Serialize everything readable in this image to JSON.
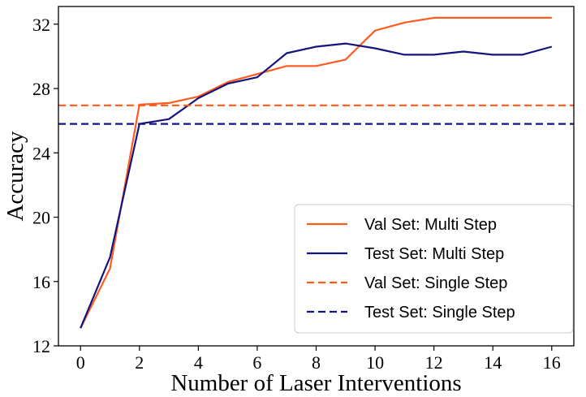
{
  "chart_data": {
    "type": "line",
    "title": "",
    "xlabel": "Number of Laser Interventions",
    "ylabel": "Accuracy",
    "xlim": [
      -0.75,
      16.75
    ],
    "ylim": [
      12,
      33.1
    ],
    "x_ticks": [
      "0",
      "2",
      "4",
      "6",
      "8",
      "10",
      "12",
      "14",
      "16"
    ],
    "y_ticks": [
      "12",
      "16",
      "20",
      "24",
      "28",
      "32"
    ],
    "grid": false,
    "legend_position": "lower-right",
    "x": [
      0,
      1,
      2,
      3,
      4,
      5,
      6,
      7,
      8,
      9,
      10,
      11,
      12,
      13,
      14,
      15,
      16
    ],
    "series": [
      {
        "name": "Val Set: Multi Step",
        "color": "#ff5a1f",
        "style": "solid",
        "values": [
          13.1,
          16.8,
          27.0,
          27.1,
          27.5,
          28.4,
          28.9,
          29.4,
          29.4,
          29.8,
          31.6,
          32.1,
          32.4,
          32.4,
          32.4,
          32.4,
          32.4
        ]
      },
      {
        "name": "Test Set: Multi Step",
        "color": "#14147e",
        "style": "solid",
        "values": [
          13.1,
          17.5,
          25.8,
          26.1,
          27.4,
          28.3,
          28.7,
          30.2,
          30.6,
          30.8,
          30.5,
          30.1,
          30.1,
          30.3,
          30.1,
          30.1,
          30.6
        ]
      },
      {
        "name": "Val Set: Single Step",
        "color": "#ff5a1f",
        "style": "dashed",
        "constant": 26.95
      },
      {
        "name": "Test Set: Single Step",
        "color": "#14147e",
        "style": "dashed",
        "constant": 25.8
      }
    ]
  }
}
